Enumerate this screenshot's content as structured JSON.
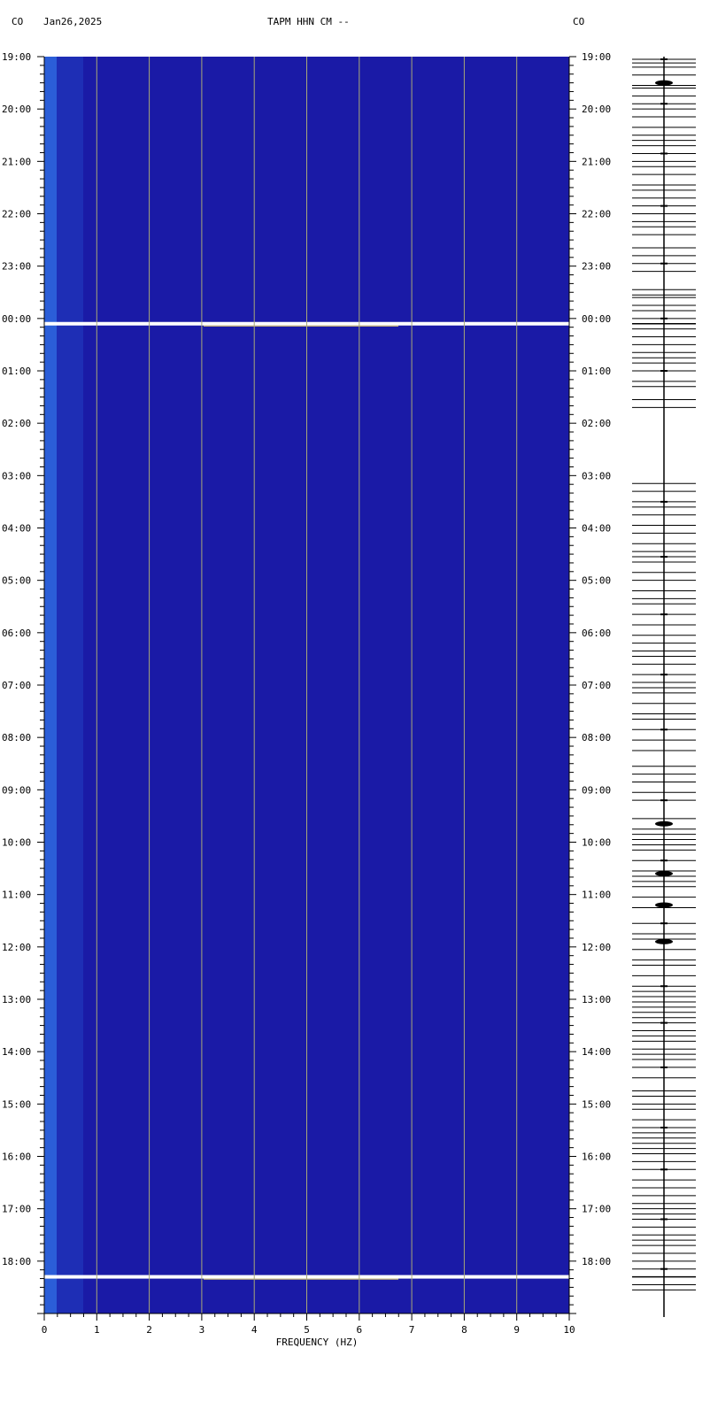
{
  "header": {
    "left_network": "CO",
    "date": "Jan26,2025",
    "station_title": "TAPM HHN CM --",
    "right_network": "CO"
  },
  "chart_data": {
    "type": "heatmap",
    "title": "TAPM HHN CM --",
    "xlabel": "FREQUENCY (HZ)",
    "ylabel": "",
    "x_range_hz": [
      0,
      10
    ],
    "x_ticks": [
      "0",
      "1",
      "2",
      "3",
      "4",
      "5",
      "6",
      "7",
      "8",
      "9",
      "10"
    ],
    "y_range_hours": [
      0,
      24
    ],
    "y_start_time": "19:00",
    "y_ticks": [
      "19:00",
      "20:00",
      "21:00",
      "22:00",
      "23:00",
      "00:00",
      "01:00",
      "02:00",
      "03:00",
      "04:00",
      "05:00",
      "06:00",
      "07:00",
      "08:00",
      "09:00",
      "10:00",
      "11:00",
      "12:00",
      "13:00",
      "14:00",
      "15:00",
      "16:00",
      "17:00",
      "18:00"
    ],
    "grid": true,
    "colors": {
      "background": "#1a1aa6",
      "low_freq_band": "#2f6be0",
      "grid": "#a8a878",
      "line_red": "#c0283a",
      "line_cyan": "#52d6de",
      "line_yellow": "#f4e070",
      "line_white": "#ffffff"
    },
    "bright_events_hours": [
      5.1,
      23.3
    ],
    "spectral_lines_hours": [
      0.05,
      0.12,
      0.2,
      0.35,
      0.55,
      0.6,
      0.75,
      0.9,
      1.0,
      1.15,
      1.35,
      1.5,
      1.6,
      1.7,
      1.85,
      2.0,
      2.1,
      2.25,
      2.45,
      2.55,
      2.7,
      2.85,
      3.0,
      3.15,
      3.25,
      3.4,
      3.65,
      3.8,
      3.95,
      4.1,
      4.45,
      4.55,
      4.6,
      4.75,
      4.85,
      5.0,
      5.2,
      5.35,
      5.5,
      5.65,
      5.75,
      5.85,
      6.0,
      6.2,
      6.3,
      6.55,
      6.7,
      8.15,
      8.3,
      8.5,
      8.6,
      8.75,
      8.95,
      9.1,
      9.3,
      9.45,
      9.55,
      9.65,
      9.85,
      10.0,
      10.2,
      10.35,
      10.45,
      10.65,
      10.85,
      11.05,
      11.2,
      11.35,
      11.45,
      11.6,
      11.8,
      11.95,
      12.05,
      12.15,
      12.35,
      12.55,
      12.65,
      12.85,
      13.05,
      13.25,
      13.55,
      13.7,
      13.85,
      14.05,
      14.2,
      14.55,
      14.75,
      14.85,
      14.95,
      15.05,
      15.15,
      15.35,
      15.55,
      15.65,
      15.75,
      15.85,
      16.05,
      16.25,
      16.55,
      16.75,
      16.85,
      17.05,
      17.25,
      17.35,
      17.55,
      17.75,
      17.85,
      17.95,
      18.05,
      18.15,
      18.25,
      18.35,
      18.45,
      18.6,
      18.7,
      18.8,
      18.95,
      19.05,
      19.15,
      19.3,
      19.5,
      19.75,
      19.85,
      20.0,
      20.1,
      20.3,
      20.45,
      20.55,
      20.65,
      20.75,
      20.85,
      20.95,
      21.1,
      21.25,
      21.45,
      21.6,
      21.75,
      21.9,
      22.0,
      22.1,
      22.2,
      22.35,
      22.5,
      22.6,
      22.7,
      22.85,
      23.0,
      23.15,
      23.45,
      23.55
    ]
  },
  "seismogram": {
    "events_hours": [
      0.5,
      14.65,
      15.6,
      16.2,
      16.9
    ]
  }
}
